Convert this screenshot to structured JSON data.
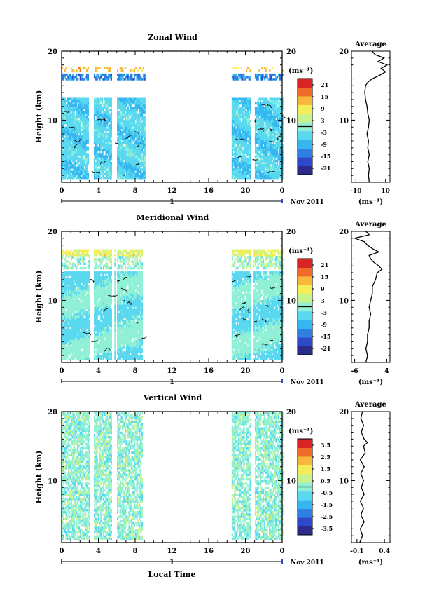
{
  "chart_data": [
    {
      "type": "heatmap",
      "title": "Zonal Wind",
      "ylabel": "Height (km)",
      "xlabel": "",
      "ylim": [
        1,
        20
      ],
      "xlim": [
        0,
        24
      ],
      "x_ticks": [
        "0",
        "4",
        "8",
        "12",
        "16",
        "20",
        "0"
      ],
      "y_ticks": [
        "10",
        "20"
      ],
      "day_label": "1",
      "date_label": "Nov 2011",
      "colorbar": {
        "unit": "(ms⁻¹)",
        "ticks": [
          "21",
          "15",
          "9",
          "3",
          "-3",
          "-9",
          "-15",
          "-21"
        ],
        "range": [
          -24,
          24
        ]
      },
      "data_coverage_hours": [
        [
          0,
          9
        ],
        [
          18.5,
          24
        ]
      ],
      "profile": {
        "title": "Average",
        "xlabel": "(ms⁻¹)",
        "x_ticks": [
          "-10",
          "10"
        ],
        "xlim": [
          -13,
          13
        ],
        "y_ticks": [
          "10",
          "20"
        ],
        "values": [
          {
            "h": 1.0,
            "v": -1.0
          },
          {
            "h": 2.0,
            "v": -1.5
          },
          {
            "h": 3.0,
            "v": -1.0
          },
          {
            "h": 4.0,
            "v": -2.0
          },
          {
            "h": 5.0,
            "v": -1.0
          },
          {
            "h": 6.0,
            "v": -2.0
          },
          {
            "h": 7.0,
            "v": -1.5
          },
          {
            "h": 8.0,
            "v": -2.5
          },
          {
            "h": 9.0,
            "v": -1.5
          },
          {
            "h": 10.0,
            "v": -1.0
          },
          {
            "h": 11.0,
            "v": -2.0
          },
          {
            "h": 12.0,
            "v": -2.5
          },
          {
            "h": 13.0,
            "v": -3.5
          },
          {
            "h": 14.0,
            "v": -4.0
          },
          {
            "h": 15.0,
            "v": -3.5
          },
          {
            "h": 15.5,
            "v": -2.0
          },
          {
            "h": 16.0,
            "v": 1.0
          },
          {
            "h": 16.5,
            "v": 6.0
          },
          {
            "h": 17.0,
            "v": 10.0
          },
          {
            "h": 17.5,
            "v": 7.0
          },
          {
            "h": 18.0,
            "v": 11.0
          },
          {
            "h": 18.5,
            "v": 5.0
          },
          {
            "h": 19.0,
            "v": 9.0
          },
          {
            "h": 19.5,
            "v": 3.0
          },
          {
            "h": 20.0,
            "v": 1.0
          }
        ]
      }
    },
    {
      "type": "heatmap",
      "title": "Meridional Wind",
      "ylabel": "Height (km)",
      "xlabel": "",
      "ylim": [
        1,
        20
      ],
      "xlim": [
        0,
        24
      ],
      "x_ticks": [
        "0",
        "4",
        "8",
        "12",
        "16",
        "20",
        "0"
      ],
      "y_ticks": [
        "10",
        "20"
      ],
      "day_label": "1",
      "date_label": "Nov 2011",
      "colorbar": {
        "unit": "(ms⁻¹)",
        "ticks": [
          "21",
          "15",
          "9",
          "3",
          "-3",
          "-9",
          "-15",
          "-21"
        ],
        "range": [
          -24,
          24
        ]
      },
      "data_coverage_hours": [
        [
          0,
          8.7
        ],
        [
          18.5,
          24
        ]
      ],
      "profile": {
        "title": "Average",
        "xlabel": "(ms⁻¹)",
        "x_ticks": [
          "-6",
          "4"
        ],
        "xlim": [
          -7,
          5
        ],
        "y_ticks": [
          "10",
          "20"
        ],
        "values": [
          {
            "h": 1.0,
            "v": -2.5
          },
          {
            "h": 2.0,
            "v": -2.0
          },
          {
            "h": 3.0,
            "v": -2.5
          },
          {
            "h": 4.0,
            "v": -2.0
          },
          {
            "h": 5.0,
            "v": -2.0
          },
          {
            "h": 6.0,
            "v": -1.5
          },
          {
            "h": 7.0,
            "v": -1.5
          },
          {
            "h": 8.0,
            "v": -1.0
          },
          {
            "h": 9.0,
            "v": -1.5
          },
          {
            "h": 10.0,
            "v": -1.0
          },
          {
            "h": 11.0,
            "v": -0.5
          },
          {
            "h": 12.0,
            "v": -0.5
          },
          {
            "h": 13.0,
            "v": 0.5
          },
          {
            "h": 14.0,
            "v": 1.0
          },
          {
            "h": 14.5,
            "v": 2.5
          },
          {
            "h": 15.0,
            "v": 1.5
          },
          {
            "h": 15.5,
            "v": 0.0
          },
          {
            "h": 16.0,
            "v": -1.0
          },
          {
            "h": 16.5,
            "v": -1.5
          },
          {
            "h": 17.0,
            "v": 1.5
          },
          {
            "h": 17.5,
            "v": -0.5
          },
          {
            "h": 18.0,
            "v": -2.0
          },
          {
            "h": 18.5,
            "v": -3.0
          },
          {
            "h": 19.0,
            "v": -6.0
          },
          {
            "h": 19.5,
            "v": -1.5
          },
          {
            "h": 20.0,
            "v": -2.5
          }
        ]
      }
    },
    {
      "type": "heatmap",
      "title": "Vertical Wind",
      "ylabel": "Height (km)",
      "xlabel": "Local Time",
      "ylim": [
        1,
        20
      ],
      "xlim": [
        0,
        24
      ],
      "x_ticks": [
        "0",
        "4",
        "8",
        "12",
        "16",
        "20",
        "0"
      ],
      "y_ticks": [
        "10",
        "20"
      ],
      "day_label": "1",
      "date_label": "Nov 2011",
      "colorbar": {
        "unit": "(ms⁻¹)",
        "ticks": [
          "3.5",
          "2.5",
          "1.5",
          "0.5",
          "-0.5",
          "-1.5",
          "-2.5",
          "-3.5"
        ],
        "range": [
          -4,
          4
        ]
      },
      "data_coverage_hours": [
        [
          0,
          8.7
        ],
        [
          18.5,
          24
        ]
      ],
      "profile": {
        "title": "Average",
        "xlabel": "(ms⁻¹)",
        "x_ticks": [
          "-0.1",
          "0.4"
        ],
        "xlim": [
          -0.2,
          0.5
        ],
        "y_ticks": [
          "10",
          "20"
        ],
        "values": [
          {
            "h": 1.0,
            "v": -0.05
          },
          {
            "h": 2.0,
            "v": 0.0
          },
          {
            "h": 3.0,
            "v": -0.04
          },
          {
            "h": 4.0,
            "v": 0.03
          },
          {
            "h": 5.0,
            "v": -0.03
          },
          {
            "h": 6.0,
            "v": 0.02
          },
          {
            "h": 7.0,
            "v": -0.04
          },
          {
            "h": 8.0,
            "v": 0.03
          },
          {
            "h": 9.0,
            "v": -0.02
          },
          {
            "h": 10.0,
            "v": 0.02
          },
          {
            "h": 11.0,
            "v": -0.03
          },
          {
            "h": 12.0,
            "v": 0.03
          },
          {
            "h": 13.0,
            "v": -0.04
          },
          {
            "h": 14.0,
            "v": 0.05
          },
          {
            "h": 15.0,
            "v": 0.02
          },
          {
            "h": 15.5,
            "v": 0.09
          },
          {
            "h": 16.0,
            "v": 0.03
          },
          {
            "h": 17.0,
            "v": -0.02
          },
          {
            "h": 18.0,
            "v": 0.02
          },
          {
            "h": 19.0,
            "v": -0.03
          },
          {
            "h": 20.0,
            "v": 0.0
          }
        ]
      }
    }
  ]
}
